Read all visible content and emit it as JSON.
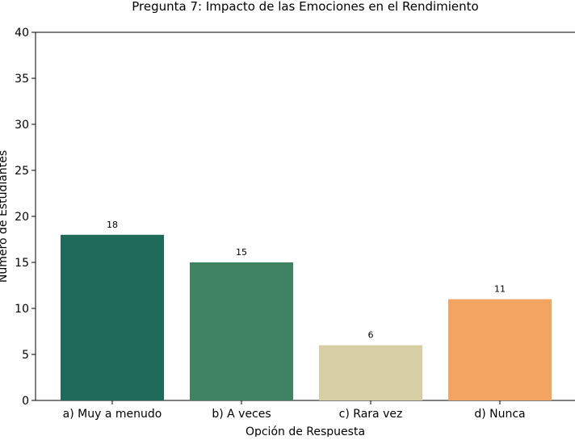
{
  "chart_data": {
    "type": "bar",
    "title": "Pregunta 7: Impacto de las Emociones en el Rendimiento",
    "xlabel": "Opción de Respuesta",
    "ylabel": "Número de Estudiantes",
    "categories": [
      "a) Muy a menudo",
      "b) A veces",
      "c) Rara vez",
      "d) Nunca"
    ],
    "values": [
      18,
      15,
      6,
      11
    ],
    "data_labels": [
      "18",
      "15",
      "6",
      "11"
    ],
    "colors": [
      "#1f6a58",
      "#3e8462",
      "#d8cea3",
      "#f3a462"
    ],
    "ylim": [
      0,
      40
    ],
    "yticks": [
      0,
      5,
      10,
      15,
      20,
      25,
      30,
      35,
      40
    ],
    "grid": false,
    "legend": "none"
  }
}
